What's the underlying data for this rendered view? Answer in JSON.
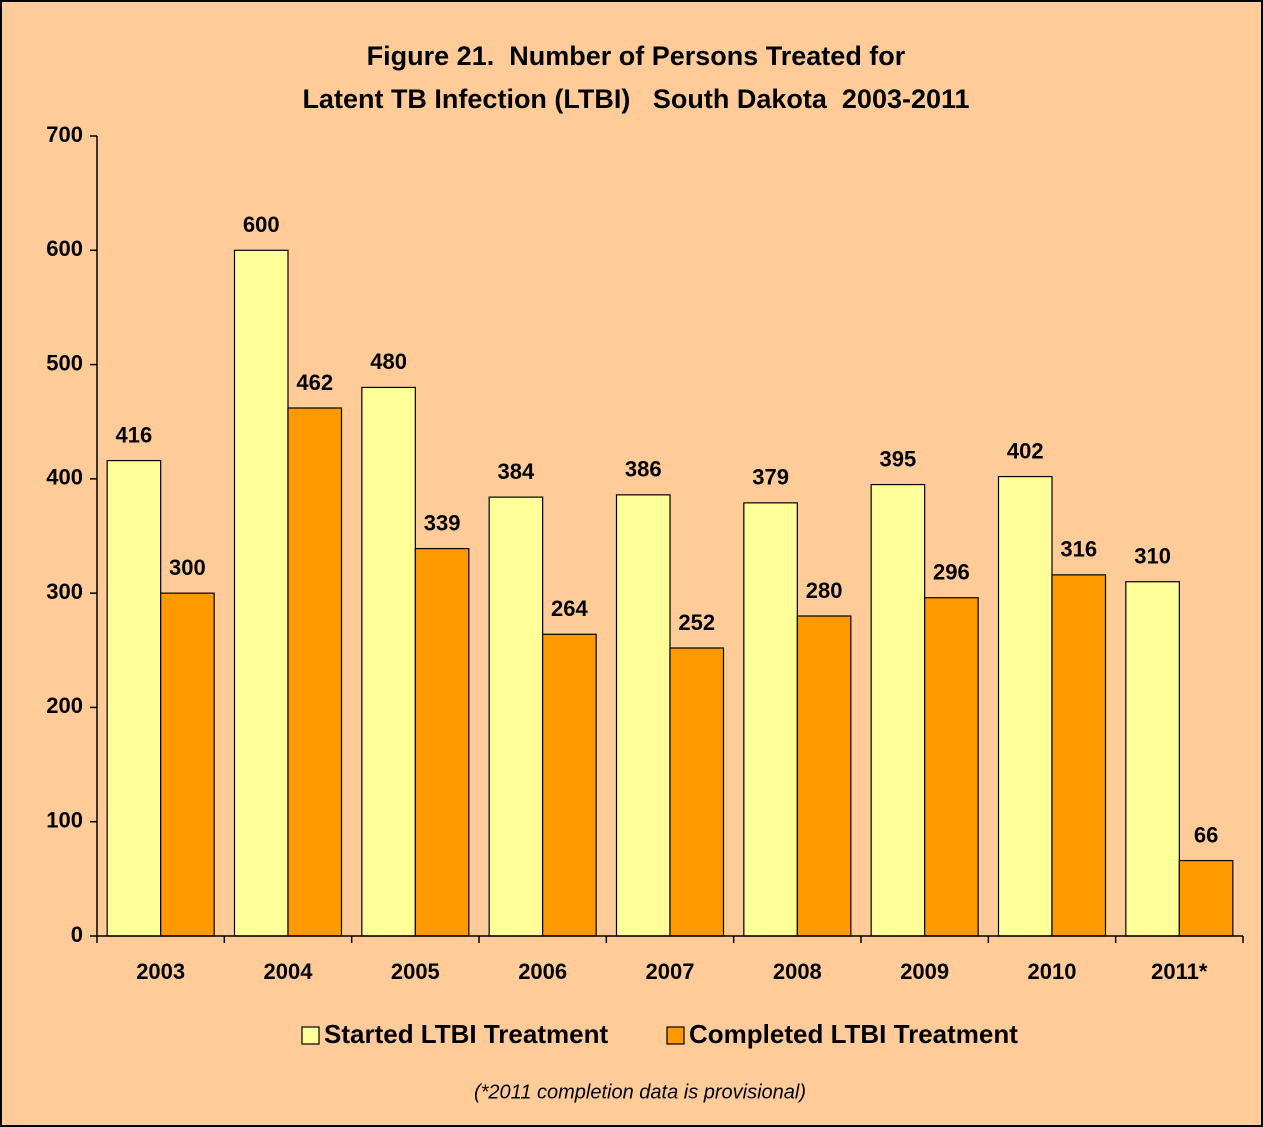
{
  "chart_data": {
    "type": "bar",
    "title": [
      "Figure 21.  Number of Persons Treated for",
      "Latent TB Infection (LTBI)   South Dakota  2003-2011"
    ],
    "categories": [
      "2003",
      "2004",
      "2005",
      "2006",
      "2007",
      "2008",
      "2009",
      "2010",
      "2011*"
    ],
    "series": [
      {
        "name": "Started LTBI Treatment",
        "color": "#FFFF99",
        "values": [
          416,
          600,
          480,
          384,
          386,
          379,
          395,
          402,
          310
        ]
      },
      {
        "name": "Completed LTBI Treatment",
        "color": "#FF9900",
        "values": [
          300,
          462,
          339,
          264,
          252,
          280,
          296,
          316,
          66
        ]
      }
    ],
    "ylim": [
      0,
      700
    ],
    "yticks": [
      0,
      100,
      200,
      300,
      400,
      500,
      600,
      700
    ],
    "annotation": "(*2011 completion data is provisional)",
    "legend": "bottom"
  }
}
